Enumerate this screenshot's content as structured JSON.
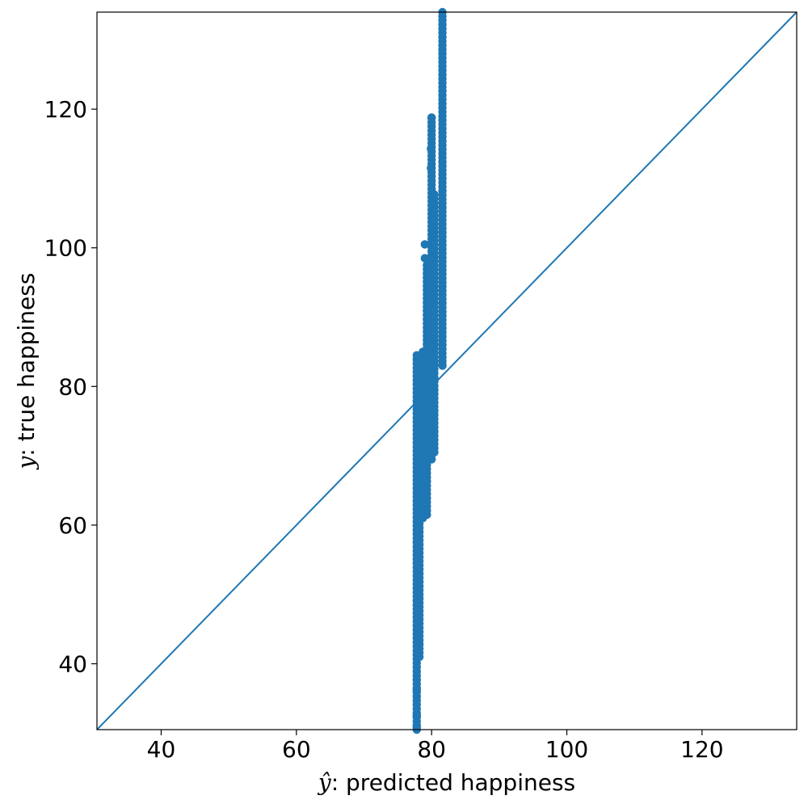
{
  "chart_data": {
    "type": "scatter",
    "xlabel": {
      "symbol": "ŷ",
      "text": ": predicted happiness"
    },
    "ylabel": {
      "symbol": "y",
      "text": ": true happiness"
    },
    "xlim": [
      30.5,
      134
    ],
    "ylim": [
      30.5,
      134
    ],
    "xticks": [
      40,
      60,
      80,
      100,
      120
    ],
    "yticks": [
      40,
      60,
      80,
      100,
      120
    ],
    "grid": false,
    "legend": "none",
    "color": "#1f77b4",
    "reference_line": {
      "from": [
        30.5,
        30.5
      ],
      "to": [
        134,
        134
      ]
    },
    "clusters": [
      {
        "x": 77.8,
        "y_low": 30.5,
        "y_high": 84.5
      },
      {
        "x": 78.2,
        "y_low": 41.0,
        "y_high": 81.5
      },
      {
        "x": 78.7,
        "y_low": 61.0,
        "y_high": 85.0
      },
      {
        "x": 79.3,
        "y_low": 61.5,
        "y_high": 97.5
      },
      {
        "x": 80.0,
        "y_low": 69.5,
        "y_high": 119.0
      },
      {
        "x": 80.4,
        "y_low": 70.5,
        "y_high": 108.0
      },
      {
        "x": 81.6,
        "y_low": 83.0,
        "y_high": 134.0
      }
    ],
    "outliers": [
      {
        "x": 77.8,
        "y": 30.8
      },
      {
        "x": 77.8,
        "y": 32.5
      },
      {
        "x": 77.8,
        "y": 36.2
      },
      {
        "x": 77.8,
        "y": 37.7
      },
      {
        "x": 79.0,
        "y": 100.5
      },
      {
        "x": 79.0,
        "y": 98.5
      },
      {
        "x": 80.0,
        "y": 118.8
      },
      {
        "x": 79.9,
        "y": 114.3
      },
      {
        "x": 79.9,
        "y": 111.5
      },
      {
        "x": 81.6,
        "y": 83.1
      }
    ]
  }
}
